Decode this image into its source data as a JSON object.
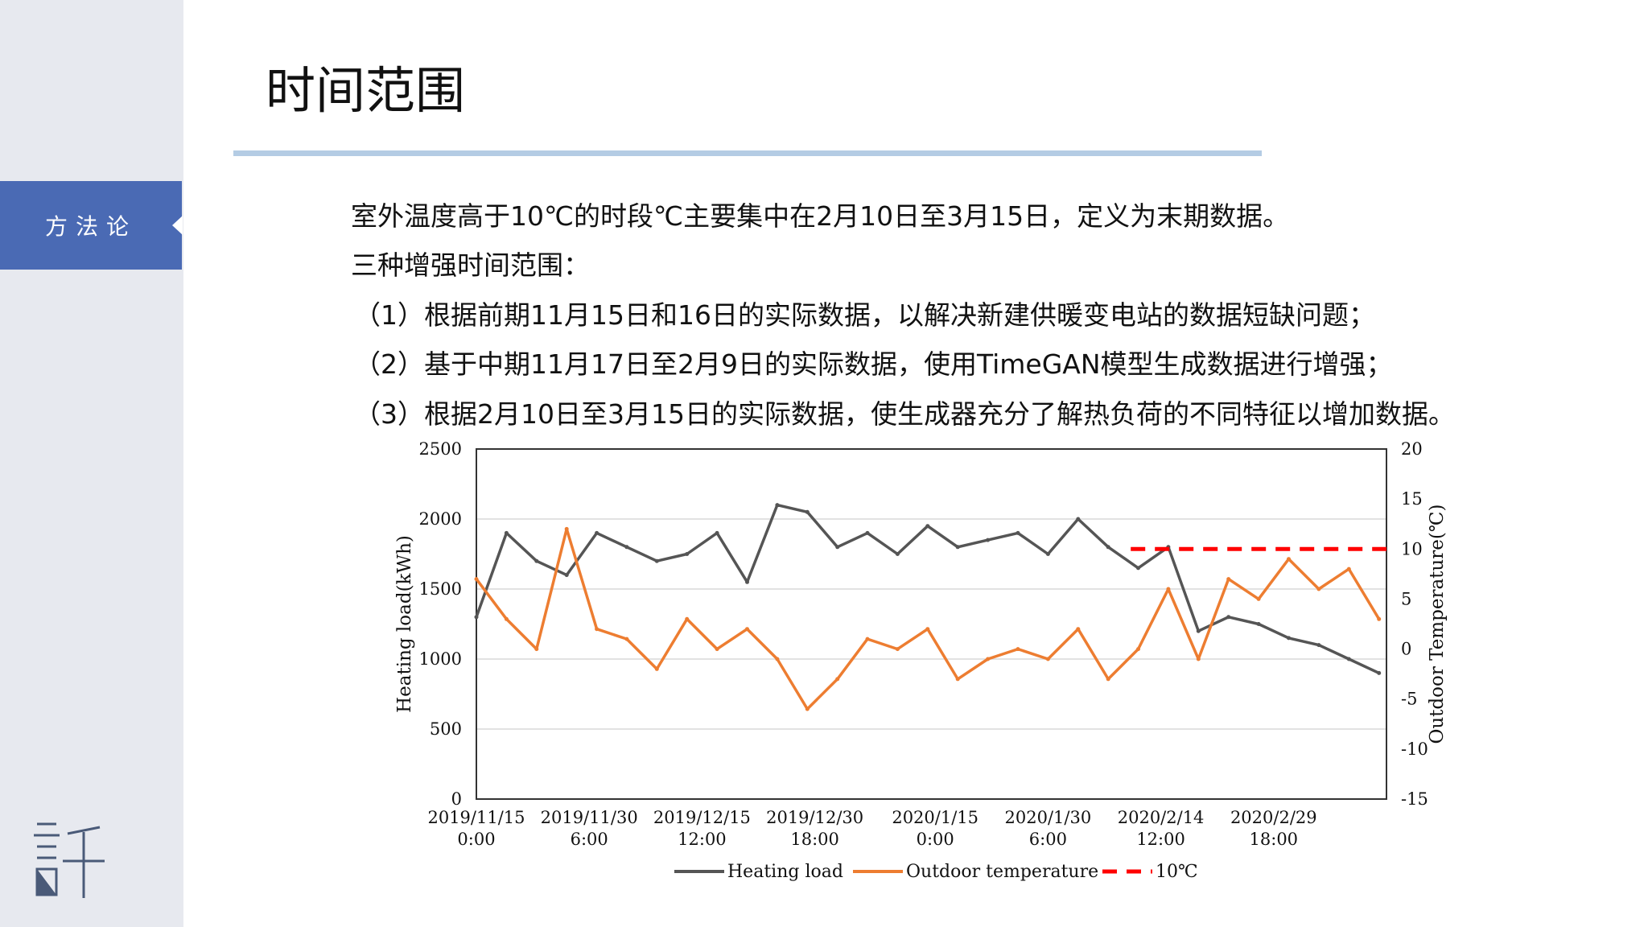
{
  "sidebar": {
    "nav_label": "方法论",
    "logo_icon": "xu-character-logo-icon"
  },
  "page": {
    "title": "时间范围",
    "accent_color": "#4a6ab4",
    "rule_color": "#b4cce4"
  },
  "body": {
    "line1": "室外温度高于10℃的时段℃主要集中在2月10日至3月15日，定义为末期数据。",
    "line2": "三种增强时间范围：",
    "line3": "（1）根据前期11月15日和16日的实际数据，以解决新建供暖变电站的数据短缺问题；",
    "line4": "（2）基于中期11月17日至2月9日的实际数据，使用TimeGAN模型生成数据进行增强；",
    "line5": "（3）根据2月10日至3月15日的实际数据，使生成器充分了解热负荷的不同特征以增加数据。"
  },
  "chart_data": {
    "type": "line",
    "xlabel": "",
    "ylabel": "Heating load(kWh)",
    "y2label": "Outdoor Temperature(℃)",
    "ylim": [
      0,
      2500
    ],
    "y2lim": [
      -15,
      20
    ],
    "y_ticks": [
      "0",
      "500",
      "1000",
      "1500",
      "2000",
      "2500"
    ],
    "y2_ticks": [
      "-15",
      "-10",
      "-5",
      "0",
      "5",
      "10",
      "15",
      "20"
    ],
    "x_ticks": [
      {
        "date": "2019/11/15",
        "time": "0:00"
      },
      {
        "date": "2019/11/30",
        "time": "6:00"
      },
      {
        "date": "2019/12/15",
        "time": "12:00"
      },
      {
        "date": "2019/12/30",
        "time": "18:00"
      },
      {
        "date": "2020/1/15",
        "time": "0:00"
      },
      {
        "date": "2020/1/30",
        "time": "6:00"
      },
      {
        "date": "2020/2/14",
        "time": "12:00"
      },
      {
        "date": "2020/2/29",
        "time": "18:00"
      }
    ],
    "grid": "horizontal",
    "legend_position": "bottom",
    "series": [
      {
        "name": "Heating load",
        "axis": "left",
        "color": "#555555",
        "x": [
          "2019/11/15",
          "2019/11/19",
          "2019/11/23",
          "2019/11/27",
          "2019/12/1",
          "2019/12/5",
          "2019/12/9",
          "2019/12/13",
          "2019/12/17",
          "2019/12/21",
          "2019/12/25",
          "2019/12/29",
          "2020/1/2",
          "2020/1/6",
          "2020/1/10",
          "2020/1/14",
          "2020/1/18",
          "2020/1/22",
          "2020/1/26",
          "2020/1/30",
          "2020/2/3",
          "2020/2/7",
          "2020/2/11",
          "2020/2/15",
          "2020/2/19",
          "2020/2/23",
          "2020/2/27",
          "2020/3/2",
          "2020/3/6",
          "2020/3/10",
          "2020/3/14"
        ],
        "values": [
          1300,
          1900,
          1700,
          1600,
          1900,
          1800,
          1700,
          1750,
          1900,
          1550,
          2100,
          2050,
          1800,
          1900,
          1750,
          1950,
          1800,
          1850,
          1900,
          1750,
          2000,
          1800,
          1650,
          1800,
          1200,
          1300,
          1250,
          1150,
          1100,
          1000,
          900
        ]
      },
      {
        "name": "Outdoor temperature",
        "axis": "right",
        "color": "#ed7d31",
        "x": [
          "2019/11/15",
          "2019/11/19",
          "2019/11/23",
          "2019/11/27",
          "2019/12/1",
          "2019/12/5",
          "2019/12/9",
          "2019/12/13",
          "2019/12/17",
          "2019/12/21",
          "2019/12/25",
          "2019/12/29",
          "2020/1/2",
          "2020/1/6",
          "2020/1/10",
          "2020/1/14",
          "2020/1/18",
          "2020/1/22",
          "2020/1/26",
          "2020/1/30",
          "2020/2/3",
          "2020/2/7",
          "2020/2/11",
          "2020/2/15",
          "2020/2/19",
          "2020/2/23",
          "2020/2/27",
          "2020/3/2",
          "2020/3/6",
          "2020/3/10",
          "2020/3/14"
        ],
        "values": [
          7,
          3,
          0,
          12,
          2,
          1,
          -2,
          3,
          0,
          2,
          -1,
          -6,
          -3,
          1,
          0,
          2,
          -3,
          -1,
          0,
          -1,
          2,
          -3,
          0,
          6,
          -1,
          7,
          5,
          9,
          6,
          8,
          3
        ]
      },
      {
        "name": "10℃",
        "axis": "right",
        "color": "#ff0000",
        "x": [
          "2020/2/10",
          "2020/3/15"
        ],
        "values": [
          10,
          10
        ]
      }
    ]
  }
}
